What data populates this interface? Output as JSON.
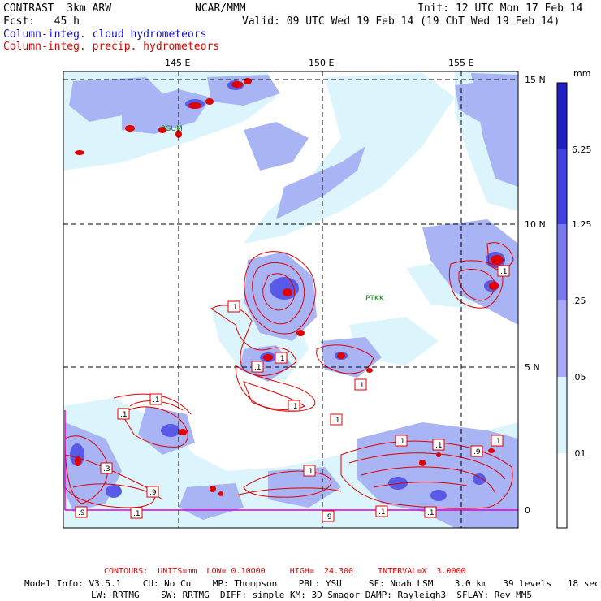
{
  "header": {
    "title": "CONTRAST  3km ARW",
    "forecast": "Fcst:   45 h",
    "center": "NCAR/MMM",
    "init": "Init: 12 UTC Mon 17 Feb 14",
    "valid": "Valid: 09 UTC Wed 19 Feb 14 (19 ChT Wed 19 Feb 14)",
    "legend_cloud": "Column-integ. cloud hydrometeors",
    "legend_precip": "Column-integ. precip. hydrometeors"
  },
  "map": {
    "lon_labels": [
      "145 E",
      "150 E",
      "155 E"
    ],
    "lat_labels": [
      "15 N",
      "10 N",
      "5 N",
      "0"
    ],
    "stations": [
      "PGUM",
      "PTKK"
    ],
    "contour_labels": [
      ".1",
      ".1",
      ".1",
      ".1",
      ".1",
      ".1",
      ".1",
      ".1",
      ".1",
      ".1",
      ".1",
      ".3",
      ".9",
      ".9",
      ".1",
      ".9",
      ".1",
      ".1",
      ".9",
      ".1",
      ".1"
    ]
  },
  "colorbar": {
    "unit": "mm",
    "levels": [
      "6.25",
      "1.25",
      ".25",
      ".05",
      ".01"
    ],
    "colors": [
      "#1f1fc8",
      "#4040e6",
      "#7878f0",
      "#a8a8f8",
      "#dcf4fc",
      "#ffffff"
    ]
  },
  "colors": {
    "cloud_light": "#dcf4fc",
    "cloud_mid": "#a8b4f4",
    "cloud_dark": "#5a5ae8",
    "precip_contour": "#e00000",
    "grid": "#000000",
    "boundary": "#e000e0"
  },
  "footer": {
    "contours": "CONTOURS:  UNITS=mm  LOW= 0.10000     HIGH=  24.300     INTERVAL=X  3.0000",
    "model_line1": "Model Info: V3.5.1    CU: No Cu    MP: Thompson    PBL: YSU     SF: Noah LSM    3.0 km   39 levels   18 sec",
    "model_line2": "LW: RRTMG    SW: RRTMG  DIFF: simple KM: 3D Smagor DAMP: Rayleigh3  SFLAY: Rev MM5"
  }
}
